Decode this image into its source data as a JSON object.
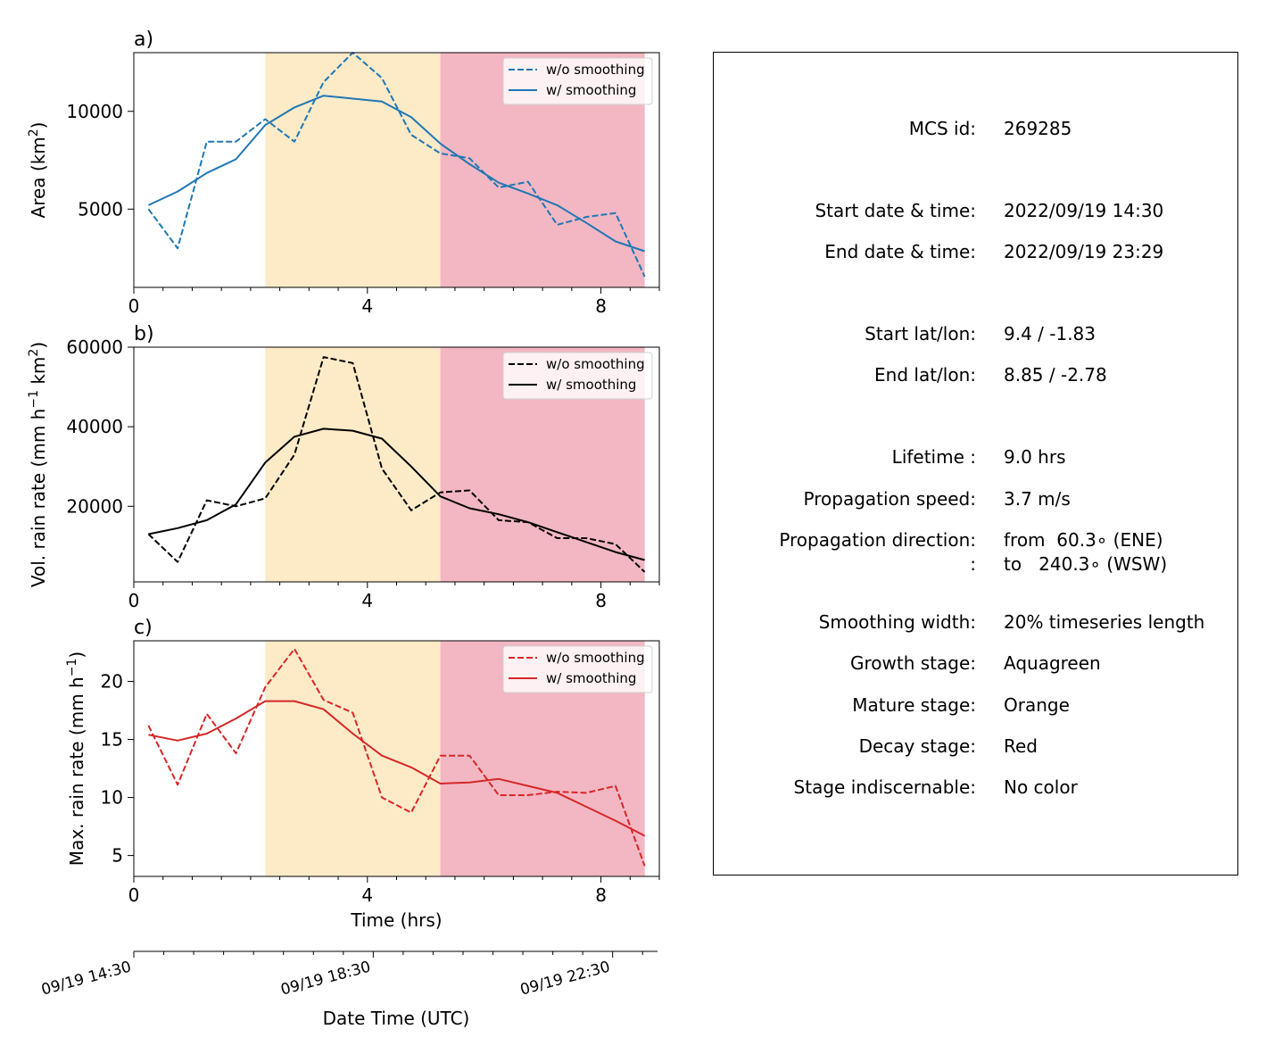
{
  "colors": {
    "growth": "#fdebc8",
    "decay": "#f3b7c3",
    "area_line": "#1f77b4",
    "volrain_line": "#000000",
    "maxrain_line": "#d62728"
  },
  "chart_data": [
    {
      "panel_label": "a)",
      "type": "line",
      "ylabel": "Area  (km²)",
      "xlim": [
        0,
        9.0
      ],
      "ylim": [
        1000,
        13000
      ],
      "xticks": [
        "0",
        "4",
        "8"
      ],
      "yticks": [
        "5000",
        "10000"
      ],
      "stages": [
        {
          "name": "growth",
          "from": 2.25,
          "to": 5.25
        },
        {
          "name": "decay",
          "from": 5.25,
          "to": 8.75
        }
      ],
      "legend": "top-right",
      "x": [
        0.25,
        0.75,
        1.25,
        1.75,
        2.25,
        2.75,
        3.25,
        3.75,
        4.25,
        4.75,
        5.25,
        5.75,
        6.25,
        6.75,
        7.25,
        7.75,
        8.25,
        8.75
      ],
      "series": [
        {
          "name": "w/o smoothing",
          "style": "dashed",
          "values": [
            5000,
            3000,
            8450,
            8450,
            9600,
            8450,
            11500,
            13000,
            11700,
            8800,
            7850,
            7600,
            6100,
            6400,
            4200,
            4600,
            4800,
            1550
          ]
        },
        {
          "name": "w/ smoothing",
          "style": "solid",
          "values": [
            5200,
            5900,
            6850,
            7550,
            9300,
            10200,
            10800,
            10650,
            10500,
            9700,
            8350,
            7300,
            6350,
            5800,
            5200,
            4300,
            3350,
            2850
          ]
        }
      ]
    },
    {
      "panel_label": "b)",
      "type": "line",
      "ylabel": "Vol. rain rate (mm h⁻¹ km²)",
      "xlim": [
        0,
        9.0
      ],
      "ylim": [
        1000,
        60000
      ],
      "xticks": [
        "0",
        "4",
        "8"
      ],
      "yticks": [
        "20000",
        "40000",
        "60000"
      ],
      "stages": [
        {
          "name": "growth",
          "from": 2.25,
          "to": 5.25
        },
        {
          "name": "decay",
          "from": 5.25,
          "to": 8.75
        }
      ],
      "legend": "top-right",
      "x": [
        0.25,
        0.75,
        1.25,
        1.75,
        2.25,
        2.75,
        3.25,
        3.75,
        4.25,
        4.75,
        5.25,
        5.75,
        6.25,
        6.75,
        7.25,
        7.75,
        8.25,
        8.75
      ],
      "series": [
        {
          "name": "w/o smoothing",
          "style": "dashed",
          "values": [
            13000,
            6000,
            21500,
            20000,
            22000,
            33000,
            57500,
            56000,
            29500,
            19000,
            23500,
            24000,
            16500,
            16000,
            12000,
            12000,
            10500,
            3500
          ]
        },
        {
          "name": "w/ smoothing",
          "style": "solid",
          "values": [
            13000,
            14500,
            16500,
            20500,
            31000,
            37500,
            39500,
            39000,
            37000,
            30000,
            22500,
            19500,
            18000,
            16000,
            13500,
            11000,
            8500,
            6500
          ]
        }
      ]
    },
    {
      "panel_label": "c)",
      "type": "line",
      "ylabel": "Max. rain rate  (mm h⁻¹)",
      "xlim": [
        0,
        9.0
      ],
      "ylim": [
        3.2,
        23.5
      ],
      "xticks": [
        "0",
        "4",
        "8"
      ],
      "yticks": [
        "5",
        "10",
        "15",
        "20"
      ],
      "xlabel": "Time (hrs)",
      "stages": [
        {
          "name": "growth",
          "from": 2.25,
          "to": 5.25
        },
        {
          "name": "decay",
          "from": 5.25,
          "to": 8.75
        }
      ],
      "legend": "top-right",
      "x": [
        0.25,
        0.75,
        1.25,
        1.75,
        2.25,
        2.75,
        3.25,
        3.75,
        4.25,
        4.75,
        5.25,
        5.75,
        6.25,
        6.75,
        7.25,
        7.75,
        8.25,
        8.75
      ],
      "series": [
        {
          "name": "w/o smoothing",
          "style": "dashed",
          "values": [
            16.2,
            11.1,
            17.2,
            13.8,
            19.5,
            22.8,
            18.4,
            17.3,
            10.0,
            8.7,
            13.6,
            13.6,
            10.2,
            10.2,
            10.5,
            10.4,
            11.0,
            4.1
          ]
        },
        {
          "name": "w/ smoothing",
          "style": "solid",
          "values": [
            15.4,
            14.9,
            15.5,
            16.8,
            18.3,
            18.3,
            17.6,
            15.5,
            13.6,
            12.6,
            11.2,
            11.3,
            11.6,
            11.0,
            10.4,
            9.2,
            8.0,
            6.7
          ]
        }
      ]
    }
  ],
  "datetime_axis": {
    "xlabel": "Date Time (UTC)",
    "ticks": [
      {
        "x": 0,
        "label": "09/19 14:30"
      },
      {
        "x": 4,
        "label": "09/19 18:30"
      },
      {
        "x": 8,
        "label": "09/19 22:30"
      }
    ],
    "xlim": [
      0,
      8.75
    ]
  },
  "info": {
    "rows": [
      {
        "key": "MCS id:",
        "value": "269285"
      },
      {
        "key": "Start date & time:",
        "value": "2022/09/19 14:30"
      },
      {
        "key": "End date & time:",
        "value": "2022/09/19 23:29"
      },
      {
        "key": "Start lat/lon:",
        "value": "9.4 / -1.83"
      },
      {
        "key": "End lat/lon:",
        "value": "8.85 / -2.78"
      },
      {
        "key": "Lifetime :",
        "value": "9.0 hrs"
      },
      {
        "key": "Propagation speed:",
        "value": "3.7 m/s"
      },
      {
        "key": "Propagation direction:",
        "value": "from  60.3∘ (ENE)"
      },
      {
        "key": ":",
        "value": "to   240.3∘ (WSW)"
      },
      {
        "key": "Smoothing width:",
        "value": "20% timeseries length"
      },
      {
        "key": "Growth stage:",
        "value": "Aquagreen"
      },
      {
        "key": "Mature stage:",
        "value": "Orange"
      },
      {
        "key": "Decay stage:",
        "value": "Red"
      },
      {
        "key": "Stage indiscernable:",
        "value": "No color"
      }
    ]
  }
}
